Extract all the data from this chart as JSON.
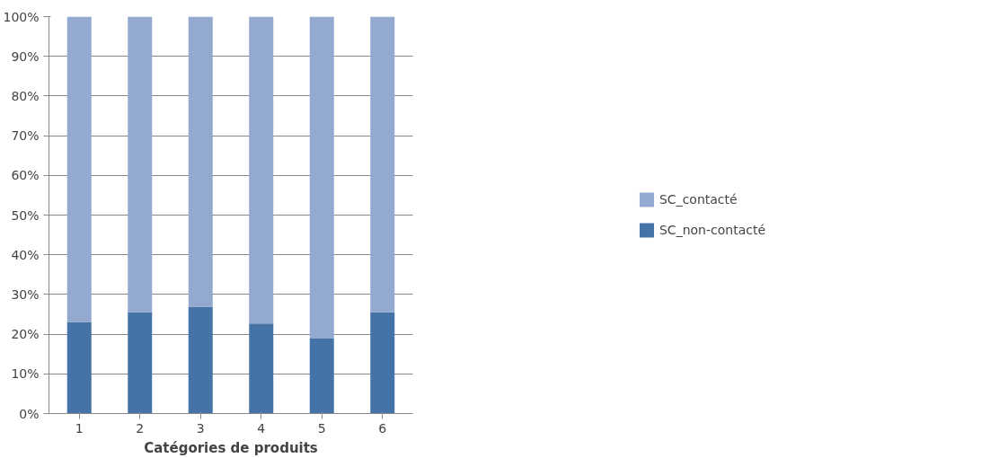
{
  "chart_data": {
    "type": "bar",
    "stacked": true,
    "xlabel": "Catégories de produits",
    "categories": [
      "1",
      "2",
      "3",
      "4",
      "5",
      "6"
    ],
    "series": [
      {
        "name": "SC_non-contacté",
        "color": "#4573a7",
        "values": [
          23.1,
          25.5,
          26.9,
          22.7,
          18.9,
          25.5
        ]
      },
      {
        "name": "SC_contacté",
        "color": "#93a9d0",
        "values": [
          76.9,
          74.5,
          73.1,
          77.3,
          81.1,
          74.5
        ]
      }
    ],
    "ylim": [
      0,
      100
    ],
    "yticks": [
      {
        "value": 0,
        "label": "0%"
      },
      {
        "value": 10,
        "label": "10%"
      },
      {
        "value": 20,
        "label": "20%"
      },
      {
        "value": 30,
        "label": "30%"
      },
      {
        "value": 40,
        "label": "40%"
      },
      {
        "value": 50,
        "label": "50%"
      },
      {
        "value": 60,
        "label": "60%"
      },
      {
        "value": 70,
        "label": "70%"
      },
      {
        "value": 80,
        "label": "80%"
      },
      {
        "value": 90,
        "label": "90%"
      },
      {
        "value": 100,
        "label": "100%"
      }
    ],
    "grid": "y",
    "legend": "right"
  }
}
